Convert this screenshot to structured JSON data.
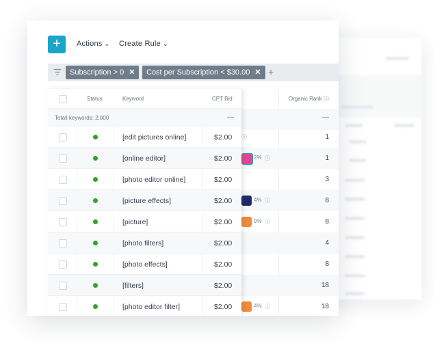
{
  "toolbar": {
    "add_label": "+",
    "actions_label": "Actions",
    "create_rule_label": "Create Rule"
  },
  "filters": [
    {
      "label": "Subscription > 0"
    },
    {
      "label": "Cost per Subscription < $30.00"
    }
  ],
  "add_filter_label": "+",
  "table": {
    "columns": {
      "status": "Status",
      "keyword": "Keyword",
      "cpt_bid": "CPT Bid",
      "organic_rank": "Organic Rank"
    },
    "total_label": "Totall keywords: 2,000",
    "total_dash": "—",
    "rows": [
      {
        "keyword": "[edit pictures online]",
        "bid": "$2.00",
        "rank": "1"
      },
      {
        "keyword": "[online editor]",
        "bid": "$2.00",
        "rank": "1",
        "pct": "2%"
      },
      {
        "keyword": "[photo editor online]",
        "bid": "$2.00",
        "rank": "3"
      },
      {
        "keyword": "[picture effects]",
        "bid": "$2.00",
        "rank": "8",
        "pct": "4%"
      },
      {
        "keyword": "[picture]",
        "bid": "$2.00",
        "rank": "8",
        "pct": "9%"
      },
      {
        "keyword": "[photo filters]",
        "bid": "$2.00",
        "rank": "4"
      },
      {
        "keyword": "[photo effects]",
        "bid": "$2.00",
        "rank": "8"
      },
      {
        "keyword": "[filters]",
        "bid": "$2.00",
        "rank": "18"
      },
      {
        "keyword": "[photo editor filter]",
        "bid": "$2.00",
        "rank": "18",
        "pct": "4%"
      }
    ]
  },
  "colors": {
    "accent": "#1aa6c9",
    "status_active": "#2ea52e",
    "chip_bg": "#6f7d8a",
    "app_pink": "#e0478f",
    "app_navy": "#1f2a6b",
    "app_orange": "#f08a3c"
  }
}
